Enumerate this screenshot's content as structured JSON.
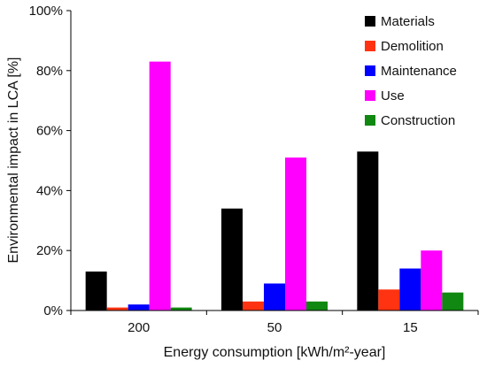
{
  "chart_data": {
    "type": "bar",
    "title": "",
    "xlabel": "Energy consumption [kWh/m²-year]",
    "ylabel": "Environmental impact in LCA [%]",
    "ylim": [
      0,
      100
    ],
    "yticks": [
      "0%",
      "20%",
      "40%",
      "60%",
      "80%",
      "100%"
    ],
    "ytick_values": [
      0,
      20,
      40,
      60,
      80,
      100
    ],
    "categories": [
      "200",
      "50",
      "15"
    ],
    "legend_position": "top-right",
    "grid": false,
    "series": [
      {
        "name": "Materials",
        "color": "#000000",
        "values": [
          13,
          34,
          53
        ]
      },
      {
        "name": "Demolition",
        "color": "#ff3311",
        "values": [
          1,
          3,
          7
        ]
      },
      {
        "name": "Maintenance",
        "color": "#0000ff",
        "values": [
          2,
          9,
          14
        ]
      },
      {
        "name": "Use",
        "color": "#ff00ff",
        "values": [
          83,
          51,
          20
        ]
      },
      {
        "name": "Construction",
        "color": "#118811",
        "values": [
          1,
          3,
          6
        ]
      }
    ]
  }
}
